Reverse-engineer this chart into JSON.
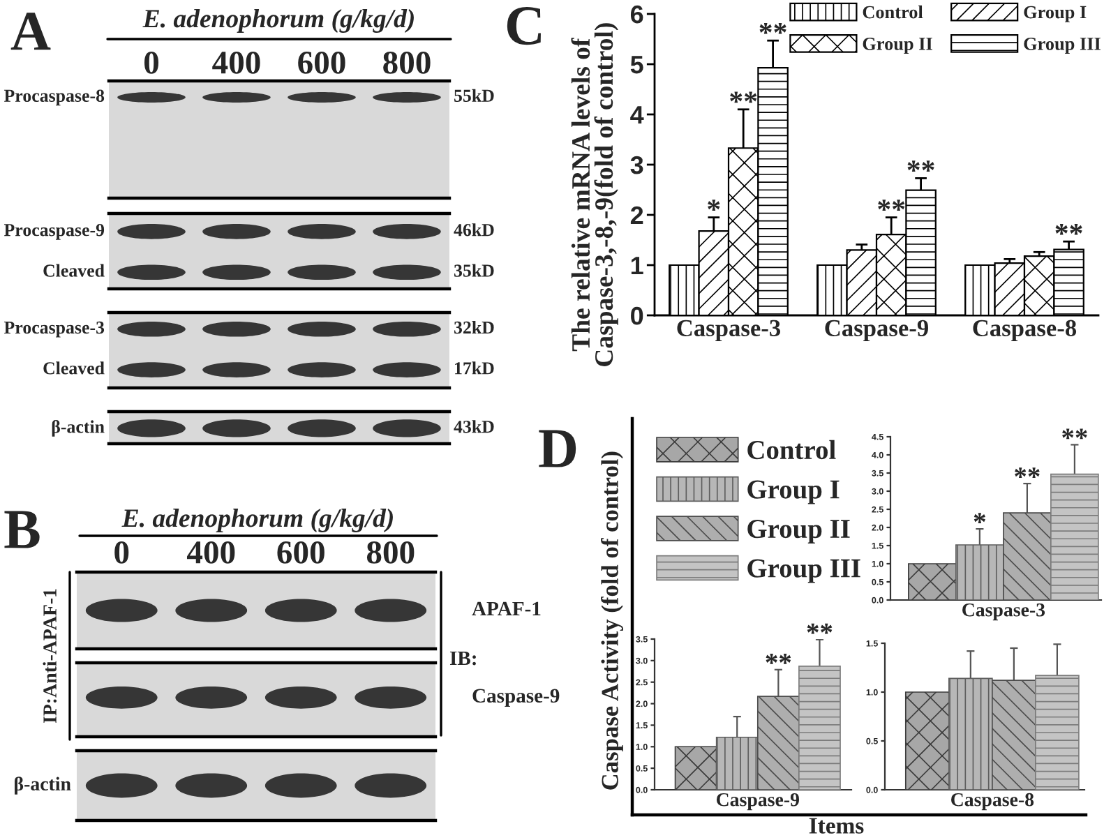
{
  "chart_data": [
    {
      "type": "other",
      "title": "A",
      "subtitle": "E. adenophorum (g/kg/d)",
      "categories": [
        "0",
        "400",
        "600",
        "800"
      ],
      "y_categories": [
        "Procaspase-8"
      ],
      "y2_categories": [
        "55kD"
      ]
    },
    {
      "type": "other",
      "y_categories": [
        "Procaspase-9",
        "Cleaved"
      ],
      "y2_categories": [
        "46kD",
        "35kD"
      ]
    },
    {
      "type": "other",
      "y_categories": [
        "Procaspase-3",
        "Cleaved"
      ],
      "y2_categories": [
        "32kD",
        "17kD"
      ]
    },
    {
      "type": "other",
      "y_categories": [
        "β-actin"
      ],
      "y2_categories": [
        "43kD"
      ]
    },
    {
      "type": "other",
      "title": "B",
      "subtitle": "E. adenophorum (g/kg/d)",
      "categories": [
        "0",
        "400",
        "600",
        "800"
      ],
      "y2_categories": [
        "APAF-1"
      ],
      "annotations": [
        "IP:Anti-APAF-1",
        "IB:"
      ]
    },
    {
      "type": "other",
      "y2_categories": [
        "Caspase-9"
      ]
    },
    {
      "type": "other",
      "y_categories": [
        "β-actin"
      ]
    },
    {
      "type": "bar",
      "title": "C",
      "ylabel": "The relative mRNA levels of\nCaspase-3,-8,-9(fold of control)",
      "categories": [
        "Caspase-3",
        "Caspase-9",
        "Caspase-8"
      ],
      "series": [
        {
          "name": "Control",
          "color": "#000000",
          "values": [
            1.0,
            1.0,
            1.0
          ]
        },
        {
          "name": "Group I",
          "color": "#000000",
          "values": [
            1.68,
            1.3,
            1.04
          ],
          "errors": [
            0.27,
            0.11,
            0.08
          ],
          "value_labels": [
            "*",
            null,
            null
          ]
        },
        {
          "name": "Group II",
          "color": "#000000",
          "values": [
            3.33,
            1.61,
            1.18
          ],
          "errors": [
            0.77,
            0.34,
            0.08
          ],
          "value_labels": [
            "**",
            "**",
            null
          ]
        },
        {
          "name": "Group III",
          "color": "#000000",
          "values": [
            4.93,
            2.49,
            1.31
          ],
          "errors": [
            0.54,
            0.24,
            0.16
          ],
          "value_labels": [
            "**",
            "**",
            "**"
          ]
        }
      ],
      "ylim": [
        0,
        6
      ],
      "yticks": [
        0,
        1,
        2,
        3,
        4,
        5,
        6
      ],
      "legend": "top right"
    },
    {
      "type": "other",
      "title": "D",
      "xlabel": "Items",
      "ylabel": "Caspase Activity (fold of control)"
    },
    {
      "type": "bar",
      "stacked": true,
      "xlabel": "Caspase-3",
      "categories": [
        null,
        null,
        null,
        null
      ],
      "series": [
        {
          "name": "Control",
          "color": "#3c3c3c",
          "values": [
            1.0,
            null,
            null,
            null
          ]
        },
        {
          "name": "Group I",
          "color": "#5e5e5e",
          "values": [
            null,
            1.52,
            null,
            null
          ],
          "errors": [
            null,
            0.44,
            null,
            null
          ],
          "value_labels": [
            null,
            "*",
            null,
            null
          ]
        },
        {
          "name": "Group II",
          "color": "#4c4c4c",
          "values": [
            null,
            null,
            2.4,
            null
          ],
          "errors": [
            null,
            null,
            0.81,
            null
          ],
          "value_labels": [
            null,
            null,
            "**",
            null
          ]
        },
        {
          "name": "Group III",
          "color": "#7c7c7c",
          "values": [
            null,
            null,
            null,
            3.47
          ],
          "errors": [
            null,
            null,
            null,
            0.81
          ],
          "value_labels": [
            null,
            null,
            null,
            "**"
          ]
        }
      ],
      "ylim": [
        0,
        4.5
      ],
      "yticks": [
        {
          "value": 0,
          "label": "0.0"
        },
        {
          "value": 0.5,
          "label": "0.5"
        },
        {
          "value": 1,
          "label": "1.0"
        },
        {
          "value": 1.5,
          "label": "1.5"
        },
        {
          "value": 2,
          "label": "2.0"
        },
        {
          "value": 2.5,
          "label": "2.5"
        },
        {
          "value": 3,
          "label": "3.0"
        },
        {
          "value": 3.5,
          "label": "3.5"
        },
        {
          "value": 4,
          "label": "4.0"
        },
        {
          "value": 4.5,
          "label": "4.5"
        }
      ],
      "legend": "left"
    },
    {
      "type": "bar",
      "stacked": true,
      "xlabel": "Caspase-9",
      "categories": [
        null,
        null,
        null,
        null
      ],
      "series": [
        {
          "color": "#3c3c3c",
          "values": [
            1.0,
            null,
            null,
            null
          ]
        },
        {
          "color": "#5e5e5e",
          "values": [
            null,
            1.22,
            null,
            null
          ],
          "errors": [
            null,
            0.48,
            null,
            null
          ]
        },
        {
          "color": "#4c4c4c",
          "values": [
            null,
            null,
            2.17,
            null
          ],
          "errors": [
            null,
            null,
            0.62,
            null
          ],
          "value_labels": [
            null,
            null,
            "**",
            null
          ]
        },
        {
          "color": "#7c7c7c",
          "values": [
            null,
            null,
            null,
            2.87
          ],
          "errors": [
            null,
            null,
            null,
            0.62
          ],
          "value_labels": [
            null,
            null,
            null,
            "**"
          ]
        }
      ],
      "ylim": [
        0,
        3.5
      ],
      "yticks": [
        {
          "value": 0,
          "label": "0.0"
        },
        {
          "value": 0.5,
          "label": "0.5"
        },
        {
          "value": 1,
          "label": "1.0"
        },
        {
          "value": 1.5,
          "label": "1.5"
        },
        {
          "value": 2,
          "label": "2.0"
        },
        {
          "value": 2.5,
          "label": "2.5"
        },
        {
          "value": 3,
          "label": "3.0"
        },
        {
          "value": 3.5,
          "label": "3.5"
        }
      ]
    },
    {
      "type": "bar",
      "stacked": true,
      "xlabel": "Caspase-8",
      "categories": [
        null,
        null,
        null,
        null
      ],
      "series": [
        {
          "color": "#3c3c3c",
          "values": [
            1.0,
            null,
            null,
            null
          ]
        },
        {
          "color": "#5e5e5e",
          "values": [
            null,
            1.14,
            null,
            null
          ],
          "errors": [
            null,
            0.28,
            null,
            null
          ]
        },
        {
          "color": "#4c4c4c",
          "values": [
            null,
            null,
            1.12,
            null
          ],
          "errors": [
            null,
            null,
            0.33,
            null
          ]
        },
        {
          "color": "#7c7c7c",
          "values": [
            null,
            null,
            null,
            1.17
          ],
          "errors": [
            null,
            null,
            null,
            0.32
          ]
        }
      ],
      "ylim": [
        0,
        1.5
      ],
      "yticks": [
        {
          "value": 0,
          "label": "0.0"
        },
        {
          "value": 0.5,
          "label": "0.5"
        },
        {
          "value": 1,
          "label": "1.0"
        },
        {
          "value": 1.5,
          "label": "1.5"
        }
      ]
    }
  ]
}
